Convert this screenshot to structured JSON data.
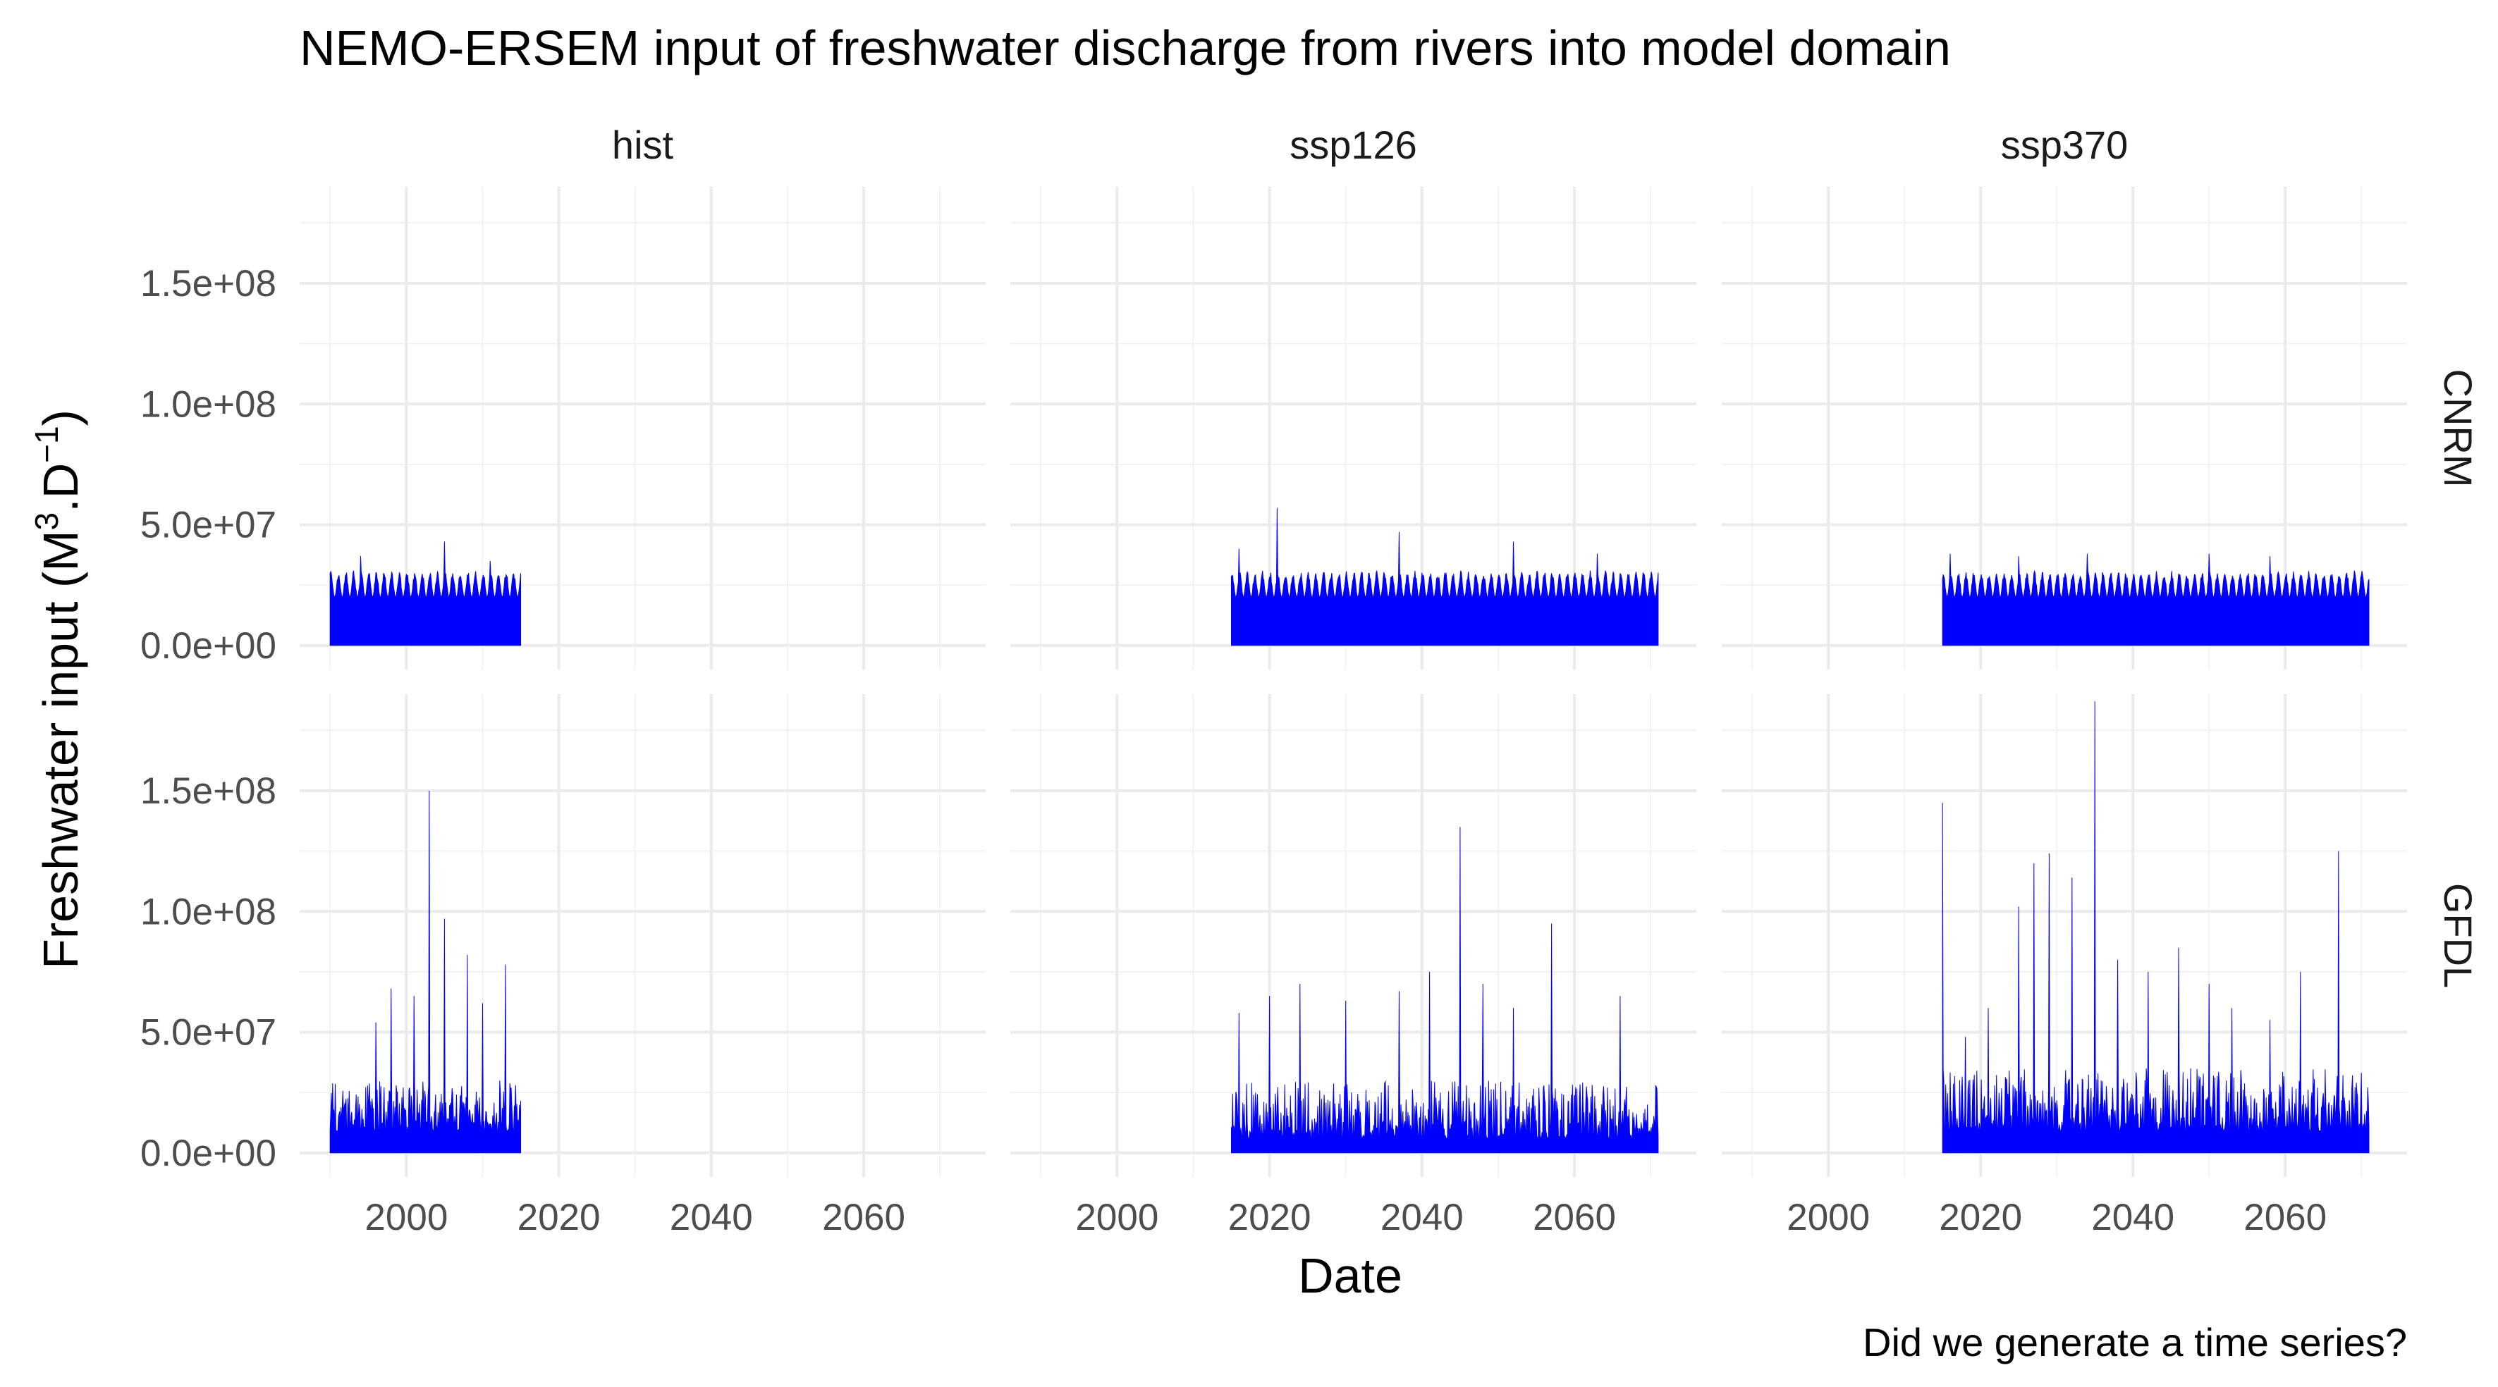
{
  "chart_data": {
    "type": "area",
    "title": "NEMO-ERSEM input of freshwater discharge from rivers into model domain",
    "xlabel": "Date",
    "ylabel": "Freshwater input (M³.D⁻¹)",
    "ylabel_parts": {
      "before": "Freshwater input (M",
      "sup1": "3",
      "middle": ".D",
      "sup2": "−1",
      "after": ")"
    },
    "caption": "Did we generate a time series?",
    "columns": [
      "hist",
      "ssp126",
      "ssp370"
    ],
    "rows": [
      "CNRM",
      "GFDL"
    ],
    "xlim": [
      1986,
      2076
    ],
    "ylim": [
      -10000000,
      190000000
    ],
    "x_ticks": [
      2000,
      2020,
      2040,
      2060
    ],
    "x_tick_labels": [
      "2000",
      "2020",
      "2040",
      "2060"
    ],
    "y_ticks": [
      0,
      50000000,
      100000000,
      150000000
    ],
    "y_tick_labels": [
      "0.0e+00",
      "5.0e+07",
      "1.0e+08",
      "1.5e+08"
    ],
    "series_color": "#0000ff",
    "grid": true,
    "panels": [
      {
        "row": "CNRM",
        "column": "hist",
        "x_start": 1990,
        "x_end": 2015,
        "base": 20000000,
        "seasonal_peak": 31000000,
        "peaks": [
          [
            1994,
            37000000
          ],
          [
            2005,
            43000000
          ],
          [
            2011,
            35000000
          ]
        ]
      },
      {
        "row": "CNRM",
        "column": "ssp126",
        "x_start": 2015,
        "x_end": 2071,
        "base": 20000000,
        "seasonal_peak": 31000000,
        "peaks": [
          [
            2016,
            40000000
          ],
          [
            2021,
            57000000
          ],
          [
            2037,
            47000000
          ],
          [
            2052,
            43000000
          ],
          [
            2063,
            38000000
          ]
        ]
      },
      {
        "row": "CNRM",
        "column": "ssp370",
        "x_start": 2015,
        "x_end": 2071,
        "base": 20000000,
        "seasonal_peak": 31000000,
        "peaks": [
          [
            2016,
            38000000
          ],
          [
            2025,
            37000000
          ],
          [
            2034,
            38000000
          ],
          [
            2050,
            38000000
          ],
          [
            2058,
            37000000
          ]
        ]
      },
      {
        "row": "GFDL",
        "column": "hist",
        "x_start": 1990,
        "x_end": 2015,
        "base": 15000000,
        "seasonal_peak": 30000000,
        "peaks": [
          [
            1996,
            54000000
          ],
          [
            1998,
            68000000
          ],
          [
            2001,
            65000000
          ],
          [
            2003,
            150000000
          ],
          [
            2005,
            97000000
          ],
          [
            2008,
            82000000
          ],
          [
            2010,
            62000000
          ],
          [
            2013,
            78000000
          ]
        ]
      },
      {
        "row": "GFDL",
        "column": "ssp126",
        "x_start": 2015,
        "x_end": 2071,
        "base": 10000000,
        "seasonal_peak": 30000000,
        "peaks": [
          [
            2016,
            58000000
          ],
          [
            2020,
            65000000
          ],
          [
            2024,
            70000000
          ],
          [
            2030,
            63000000
          ],
          [
            2037,
            67000000
          ],
          [
            2041,
            75000000
          ],
          [
            2045,
            135000000
          ],
          [
            2048,
            70000000
          ],
          [
            2052,
            60000000
          ],
          [
            2057,
            95000000
          ],
          [
            2066,
            65000000
          ]
        ]
      },
      {
        "row": "GFDL",
        "column": "ssp370",
        "x_start": 2015,
        "x_end": 2071,
        "base": 15000000,
        "seasonal_peak": 35000000,
        "peaks": [
          [
            2015,
            145000000
          ],
          [
            2018,
            48000000
          ],
          [
            2021,
            60000000
          ],
          [
            2025,
            102000000
          ],
          [
            2027,
            120000000
          ],
          [
            2029,
            124000000
          ],
          [
            2032,
            114000000
          ],
          [
            2035,
            187000000
          ],
          [
            2038,
            80000000
          ],
          [
            2042,
            75000000
          ],
          [
            2046,
            85000000
          ],
          [
            2050,
            70000000
          ],
          [
            2053,
            60000000
          ],
          [
            2058,
            55000000
          ],
          [
            2062,
            75000000
          ],
          [
            2067,
            125000000
          ]
        ]
      }
    ]
  }
}
